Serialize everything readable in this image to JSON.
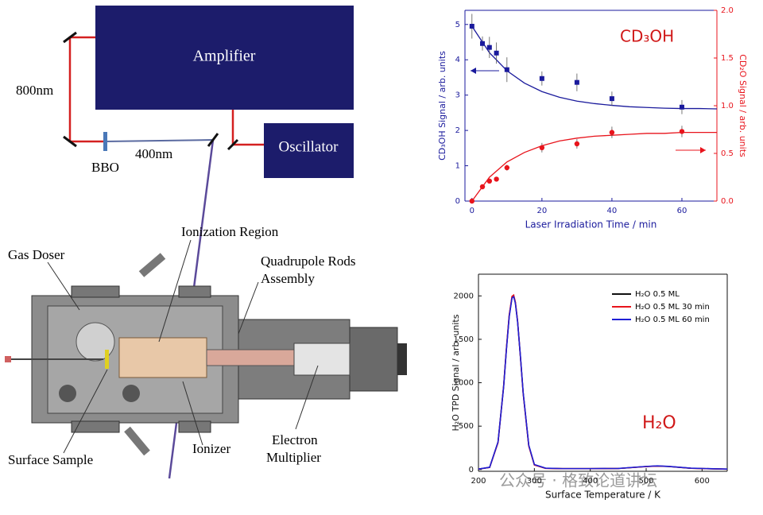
{
  "diagram": {
    "amplifier": "Amplifier",
    "oscillator": "Oscillator",
    "fundamental": "800nm",
    "crystal": "BBO",
    "harmonic": "400nm",
    "ionization_region": "Ionization Region",
    "gas_doser": "Gas Doser",
    "quadrupole": [
      "Quadrupole Rods",
      "Assembly"
    ],
    "surface_sample": "Surface Sample",
    "ionizer": "Ionizer",
    "multiplier": [
      "Electron",
      "Multiplier"
    ],
    "watermark": "公众号 · 格致论道讲坛"
  },
  "chart_data": [
    {
      "type": "scatter",
      "annotation": "CD₃OH",
      "xlabel": "Laser Irradiation Time / min",
      "ylabel": "CD₃OH Signal / arb. units",
      "y2label": "CD₂O Signal / arb. units",
      "xlim": [
        -2,
        70
      ],
      "xticks": [
        0,
        20,
        40,
        60
      ],
      "ylim": [
        0,
        5.4
      ],
      "yticks": [
        0,
        1,
        2,
        3,
        4,
        5
      ],
      "y2lim": [
        0,
        2.0
      ],
      "y2ticks": [
        {
          "value": 0,
          "label": "0.0"
        },
        {
          "value": 0.5,
          "label": "0.5"
        },
        {
          "value": 1,
          "label": "1.0"
        },
        {
          "value": 1.5,
          "label": "1.5"
        },
        {
          "value": 2,
          "label": "2.0"
        }
      ],
      "series": [
        {
          "color": "#1a1a9c",
          "marker": "square",
          "x": [
            0,
            3,
            5,
            7,
            10,
            20,
            30,
            40,
            60
          ],
          "values": [
            4.95,
            4.46,
            4.35,
            4.19,
            3.72,
            3.47,
            3.36,
            2.9,
            2.66
          ],
          "errors": [
            0.35,
            0.2,
            0.3,
            0.3,
            0.35,
            0.2,
            0.25,
            0.2,
            0.2
          ],
          "fit_x": [
            0,
            5,
            10,
            15,
            20,
            25,
            30,
            35,
            40,
            45,
            50,
            55,
            60,
            65,
            70
          ],
          "fit_values": [
            4.95,
            4.2,
            3.69,
            3.34,
            3.1,
            2.94,
            2.83,
            2.76,
            2.71,
            2.67,
            2.65,
            2.63,
            2.62,
            2.62,
            2.61
          ]
        },
        {
          "color": "#e8141c",
          "marker": "circle",
          "axis": "y2",
          "x": [
            0,
            3,
            5,
            7,
            10,
            20,
            30,
            40,
            60
          ],
          "values": [
            0,
            0.15,
            0.21,
            0.23,
            0.35,
            0.56,
            0.6,
            0.72,
            0.73
          ],
          "errors": [
            0,
            0,
            0,
            0,
            0.03,
            0.05,
            0.05,
            0.06,
            0.06
          ],
          "fit_x": [
            0,
            5,
            10,
            15,
            20,
            25,
            30,
            35,
            40,
            45,
            50,
            55,
            60,
            65,
            70
          ],
          "fit_values": [
            0,
            0.25,
            0.41,
            0.51,
            0.58,
            0.63,
            0.66,
            0.68,
            0.69,
            0.7,
            0.71,
            0.71,
            0.72,
            0.72,
            0.72
          ]
        }
      ]
    },
    {
      "type": "line",
      "annotation": "H₂O",
      "xlabel": "Surface Temperature / K",
      "ylabel": "H₂O TPD Signal / arb. units",
      "xlim": [
        200,
        645
      ],
      "xticks": [
        200,
        300,
        400,
        500,
        600
      ],
      "ylim": [
        -20,
        2250
      ],
      "yticks": [
        0,
        500,
        1000,
        1500,
        2000
      ],
      "legend": "upper right",
      "series": [
        {
          "name": "H₂O 0.5 ML",
          "color": "#111111",
          "x": [
            200,
            220,
            235,
            245,
            250,
            255,
            260,
            263,
            266,
            270,
            275,
            280,
            290,
            300,
            320,
            350,
            400,
            450,
            500,
            520,
            540,
            580,
            620,
            645
          ],
          "values": [
            5,
            25,
            315,
            960,
            1390,
            1770,
            1985,
            2000,
            1925,
            1705,
            1305,
            880,
            275,
            55,
            15,
            10,
            10,
            12,
            35,
            40,
            35,
            15,
            8,
            5
          ]
        },
        {
          "name": "H₂O 0.5 ML  30 min",
          "color": "#e8141c",
          "x": [
            200,
            220,
            235,
            245,
            250,
            255,
            260,
            263,
            266,
            270,
            275,
            280,
            290,
            300,
            320,
            350,
            400,
            450,
            500,
            520,
            540,
            580,
            620,
            645
          ],
          "values": [
            5,
            24,
            310,
            955,
            1395,
            1780,
            1995,
            2010,
            1930,
            1710,
            1300,
            875,
            270,
            52,
            14,
            10,
            10,
            12,
            34,
            40,
            36,
            15,
            8,
            5
          ]
        },
        {
          "name": "H₂O 0.5 ML  60 min",
          "color": "#1f1fd6",
          "x": [
            200,
            220,
            235,
            245,
            250,
            255,
            260,
            263,
            266,
            270,
            275,
            280,
            290,
            300,
            320,
            350,
            400,
            450,
            500,
            520,
            540,
            580,
            620,
            645
          ],
          "values": [
            6,
            26,
            318,
            950,
            1380,
            1760,
            1975,
            1990,
            1915,
            1700,
            1310,
            885,
            280,
            58,
            16,
            11,
            11,
            13,
            36,
            42,
            37,
            16,
            9,
            6
          ]
        }
      ]
    }
  ]
}
